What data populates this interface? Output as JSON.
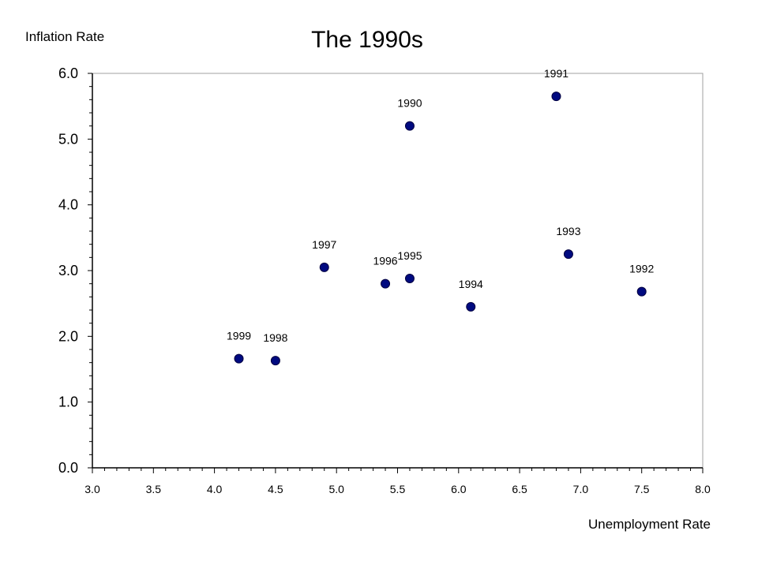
{
  "chart_data": {
    "type": "scatter",
    "title": "The 1990s",
    "xlabel": "Unemployment Rate",
    "ylabel": "Inflation Rate",
    "xlim": [
      3.0,
      8.0
    ],
    "ylim": [
      0.0,
      6.0
    ],
    "x_ticks": [
      "3.0",
      "3.5",
      "4.0",
      "4.5",
      "5.0",
      "5.5",
      "6.0",
      "6.5",
      "7.0",
      "7.5",
      "8.0"
    ],
    "y_ticks": [
      "0.0",
      "1.0",
      "2.0",
      "3.0",
      "4.0",
      "5.0",
      "6.0"
    ],
    "grid": false,
    "legend": "none",
    "marker_color": "#000a80",
    "points": [
      {
        "label": "1990",
        "x": 5.6,
        "y": 5.2
      },
      {
        "label": "1991",
        "x": 6.8,
        "y": 5.65
      },
      {
        "label": "1992",
        "x": 7.5,
        "y": 2.68
      },
      {
        "label": "1993",
        "x": 6.9,
        "y": 3.25
      },
      {
        "label": "1994",
        "x": 6.1,
        "y": 2.45
      },
      {
        "label": "1995",
        "x": 5.6,
        "y": 2.88
      },
      {
        "label": "1996",
        "x": 5.4,
        "y": 2.8
      },
      {
        "label": "1997",
        "x": 4.9,
        "y": 3.05
      },
      {
        "label": "1998",
        "x": 4.5,
        "y": 1.63
      },
      {
        "label": "1999",
        "x": 4.2,
        "y": 1.66
      }
    ]
  }
}
